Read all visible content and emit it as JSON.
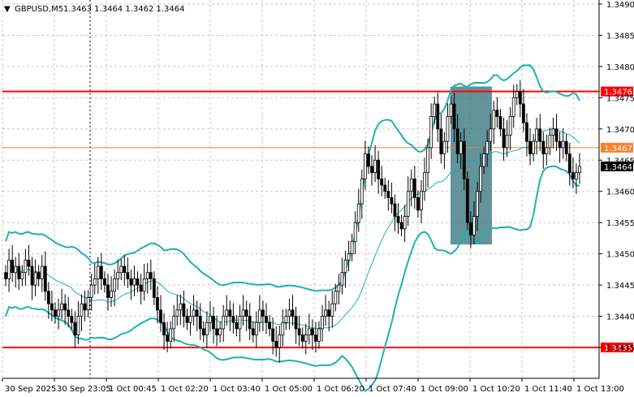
{
  "header": {
    "symbol": "GBPUSD,M5",
    "ohlc": "1.3463 1.3464 1.3462 1.3464"
  },
  "colors": {
    "background": "#ffffff",
    "grid": "#c8c8c8",
    "candle": "#000000",
    "bollinger": "#20b2aa",
    "resistance": "#ff0000",
    "mid_level": "#ff7f27",
    "highlight": "#2f6f7a",
    "price_label": "#000000"
  },
  "chart_data": {
    "type": "candlestick",
    "title": "GBPUSD,M5",
    "ylim": [
      1.343,
      1.349
    ],
    "y_ticks": [
      "1.3490",
      "1.3485",
      "1.3480",
      "1.3475",
      "1.3470",
      "1.3465",
      "1.3460",
      "1.3455",
      "1.3450",
      "1.3445",
      "1.3440",
      "1.3435"
    ],
    "x_ticks": [
      "30 Sep 2025",
      "30 Sep 23:05",
      "1 Oct 00:45",
      "1 Oct 02:20",
      "1 Oct 03:40",
      "1 Oct 05:00",
      "1 Oct 06:20",
      "1 Oct 07:40",
      "1 Oct 09:00",
      "1 Oct 10:20",
      "1 Oct 11:40",
      "1 Oct 13:00"
    ],
    "grid": true,
    "horizontal_levels": [
      {
        "label": "1.3476",
        "value": 1.3476,
        "color": "#ff0000"
      },
      {
        "label": "1.3467",
        "value": 1.3467,
        "color": "#ff7f27"
      },
      {
        "label": "1.3435",
        "value": 1.3435,
        "color": "#ff0000"
      }
    ],
    "current_price_label": "1.3464",
    "highlight_box": {
      "x_from": 0.705,
      "x_to": 0.775,
      "y_low": 1.34515,
      "y_high": 1.34768
    },
    "closes": [
      1.3446,
      1.3449,
      1.3447,
      1.3448,
      1.3446,
      1.3447,
      1.3449,
      1.3448,
      1.3445,
      1.3447,
      1.3446,
      1.3448,
      1.3444,
      1.3442,
      1.3441,
      1.344,
      1.3441,
      1.3442,
      1.3441,
      1.344,
      1.3439,
      1.3437,
      1.344,
      1.3442,
      1.3441,
      1.3443,
      1.3445,
      1.3446,
      1.3448,
      1.3446,
      1.3445,
      1.3443,
      1.3444,
      1.3446,
      1.3447,
      1.3448,
      1.3447,
      1.3446,
      1.3445,
      1.3446,
      1.3445,
      1.3444,
      1.3446,
      1.3447,
      1.3446,
      1.3443,
      1.3441,
      1.3439,
      1.3437,
      1.3436,
      1.3438,
      1.344,
      1.3441,
      1.3442,
      1.344,
      1.3439,
      1.344,
      1.3441,
      1.344,
      1.3438,
      1.3437,
      1.3439,
      1.344,
      1.3438,
      1.3437,
      1.3438,
      1.344,
      1.3441,
      1.344,
      1.3439,
      1.3438,
      1.344,
      1.3441,
      1.344,
      1.3438,
      1.3437,
      1.3439,
      1.3441,
      1.344,
      1.3439,
      1.3438,
      1.3436,
      1.3435,
      1.3437,
      1.3439,
      1.344,
      1.3441,
      1.344,
      1.3438,
      1.3437,
      1.3436,
      1.3437,
      1.3438,
      1.3437,
      1.3436,
      1.3438,
      1.344,
      1.3441,
      1.344,
      1.3442,
      1.3444,
      1.3445,
      1.3447,
      1.3449,
      1.345,
      1.3452,
      1.3455,
      1.3458,
      1.3462,
      1.3466,
      1.3464,
      1.3463,
      1.3465,
      1.3462,
      1.3461,
      1.346,
      1.3459,
      1.3458,
      1.3456,
      1.3455,
      1.3454,
      1.3456,
      1.346,
      1.3462,
      1.3459,
      1.3457,
      1.346,
      1.3463,
      1.3467,
      1.3472,
      1.3474,
      1.347,
      1.3466,
      1.3468,
      1.3472,
      1.3474,
      1.347,
      1.3466,
      1.3468,
      1.3462,
      1.3455,
      1.3453,
      1.3456,
      1.346,
      1.3464,
      1.3466,
      1.3468,
      1.347,
      1.3473,
      1.3472,
      1.347,
      1.3467,
      1.3469,
      1.3472,
      1.3475,
      1.3476,
      1.3474,
      1.3471,
      1.3468,
      1.3466,
      1.3468,
      1.347,
      1.3468,
      1.3466,
      1.3467,
      1.3469,
      1.347,
      1.3468,
      1.3467,
      1.3468,
      1.3466,
      1.3463,
      1.3462,
      1.3463,
      1.3464
    ]
  }
}
